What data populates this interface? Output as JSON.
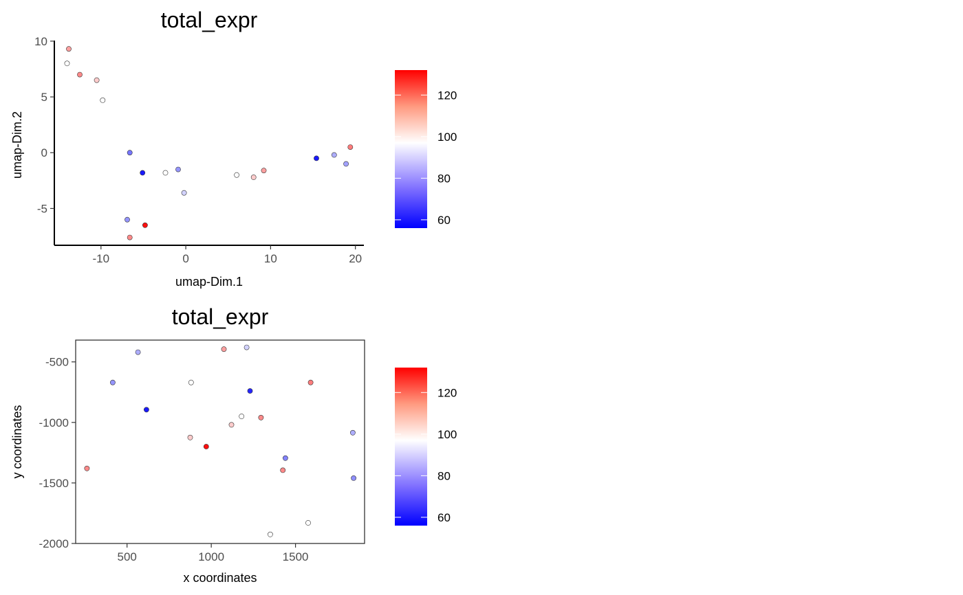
{
  "colors": {
    "low": "#0000ff",
    "mid": "#ffffff",
    "high": "#ff0000",
    "point_outline": "#333333"
  },
  "chart_data": [
    {
      "type": "scatter",
      "title": "total_expr",
      "xlabel": "umap-Dim.1",
      "ylabel": "umap-Dim.2",
      "xlim": [
        -15.5,
        21
      ],
      "ylim": [
        -8.3,
        10.3
      ],
      "xticks": [
        -10,
        0,
        10,
        20
      ],
      "xtick_labels": [
        "-10",
        "0",
        "10",
        "20"
      ],
      "yticks": [
        -5,
        0,
        5,
        10
      ],
      "ytick_labels": [
        "-5",
        "0",
        "5",
        "10"
      ],
      "axis_style": "classic",
      "grid": false,
      "color_scale": {
        "name": "total_expr",
        "min": 56,
        "max": 132,
        "midpoint": 97,
        "breaks": [
          60,
          80,
          100,
          120
        ],
        "break_labels": [
          "60",
          "80",
          "100",
          "120"
        ]
      },
      "points": [
        {
          "x": -13.8,
          "y": 9.3,
          "value": 110
        },
        {
          "x": -14.0,
          "y": 8.0,
          "value": 97
        },
        {
          "x": -12.5,
          "y": 7.0,
          "value": 113
        },
        {
          "x": -10.5,
          "y": 6.5,
          "value": 104
        },
        {
          "x": -9.8,
          "y": 4.7,
          "value": 97
        },
        {
          "x": -6.6,
          "y": 0.0,
          "value": 75
        },
        {
          "x": -5.1,
          "y": -1.8,
          "value": 60
        },
        {
          "x": -2.4,
          "y": -1.8,
          "value": 97
        },
        {
          "x": -0.9,
          "y": -1.5,
          "value": 80
        },
        {
          "x": -0.2,
          "y": -3.6,
          "value": 90
        },
        {
          "x": -6.9,
          "y": -6.0,
          "value": 80
        },
        {
          "x": -4.8,
          "y": -6.5,
          "value": 130
        },
        {
          "x": -6.6,
          "y": -7.6,
          "value": 113
        },
        {
          "x": 6.0,
          "y": -2.0,
          "value": 97
        },
        {
          "x": 8.0,
          "y": -2.2,
          "value": 104
        },
        {
          "x": 9.2,
          "y": -1.6,
          "value": 110
        },
        {
          "x": 15.4,
          "y": -0.5,
          "value": 60
        },
        {
          "x": 17.5,
          "y": -0.2,
          "value": 84
        },
        {
          "x": 18.9,
          "y": -1.0,
          "value": 82
        },
        {
          "x": 19.4,
          "y": 0.5,
          "value": 115
        }
      ]
    },
    {
      "type": "scatter",
      "title": "total_expr",
      "xlabel": "x coordinates",
      "ylabel": "y coordinates",
      "xlim": [
        195,
        1910
      ],
      "ylim": [
        -2000,
        -320
      ],
      "xticks": [
        500,
        1000,
        1500
      ],
      "xtick_labels": [
        "500",
        "1000",
        "1500"
      ],
      "yticks": [
        -2000,
        -1500,
        -1000,
        -500
      ],
      "ytick_labels": [
        "-2000",
        "-1500",
        "-1000",
        "-500"
      ],
      "axis_style": "bordered",
      "grid": false,
      "color_scale": {
        "name": "total_expr",
        "min": 56,
        "max": 132,
        "midpoint": 97,
        "breaks": [
          60,
          80,
          100,
          120
        ],
        "break_labels": [
          "60",
          "80",
          "100",
          "120"
        ]
      },
      "points": [
        {
          "x": 565,
          "y": -420,
          "value": 84
        },
        {
          "x": 1075,
          "y": -395,
          "value": 110
        },
        {
          "x": 1210,
          "y": -380,
          "value": 90
        },
        {
          "x": 415,
          "y": -670,
          "value": 80
        },
        {
          "x": 880,
          "y": -670,
          "value": 97
        },
        {
          "x": 1590,
          "y": -670,
          "value": 115
        },
        {
          "x": 1230,
          "y": -740,
          "value": 62
        },
        {
          "x": 615,
          "y": -895,
          "value": 60
        },
        {
          "x": 1180,
          "y": -950,
          "value": 97
        },
        {
          "x": 1295,
          "y": -960,
          "value": 113
        },
        {
          "x": 1120,
          "y": -1020,
          "value": 104
        },
        {
          "x": 875,
          "y": -1125,
          "value": 104
        },
        {
          "x": 1840,
          "y": -1085,
          "value": 84
        },
        {
          "x": 970,
          "y": -1200,
          "value": 130
        },
        {
          "x": 1440,
          "y": -1295,
          "value": 77
        },
        {
          "x": 262,
          "y": -1380,
          "value": 113
        },
        {
          "x": 1425,
          "y": -1395,
          "value": 113
        },
        {
          "x": 1845,
          "y": -1460,
          "value": 79
        },
        {
          "x": 1575,
          "y": -1830,
          "value": 97
        },
        {
          "x": 1350,
          "y": -1925,
          "value": 97
        }
      ]
    }
  ]
}
